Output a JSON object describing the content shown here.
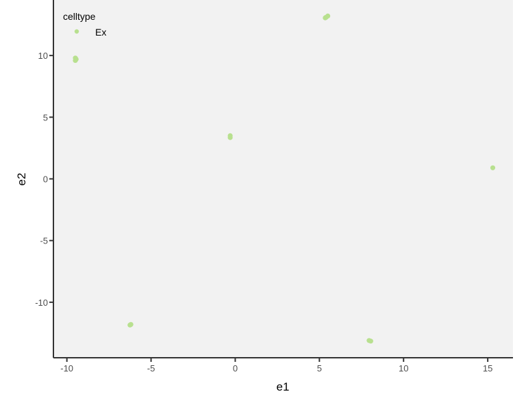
{
  "chart_data": {
    "type": "scatter",
    "xlabel": "e1",
    "ylabel": "e2",
    "xlim": [
      -10.8,
      16.5
    ],
    "ylim": [
      -14.5,
      14.5
    ],
    "x_ticks": [
      -10,
      -5,
      0,
      5,
      10,
      15
    ],
    "x_tick_labels": [
      "-10",
      "-5",
      "0",
      "5",
      "10",
      "15"
    ],
    "y_ticks": [
      -10,
      -5,
      0,
      5,
      10
    ],
    "y_tick_labels": [
      "-10",
      "-5",
      "0",
      "5",
      "10"
    ],
    "grid": false,
    "panel_background": "#f2f2f2",
    "legend": {
      "title": "celltype",
      "placement": "top-left",
      "entries": [
        {
          "label": "Ex",
          "color": "#b8e08f"
        }
      ]
    },
    "series": [
      {
        "name": "Ex",
        "color": "#b8e08f",
        "points": [
          {
            "x": 5.4,
            "y": 13.1
          },
          {
            "x": 5.5,
            "y": 13.2
          },
          {
            "x": 5.35,
            "y": 13.05
          },
          {
            "x": -9.5,
            "y": 9.8
          },
          {
            "x": -9.5,
            "y": 9.6
          },
          {
            "x": -9.45,
            "y": 9.7
          },
          {
            "x": -0.3,
            "y": 3.5
          },
          {
            "x": -0.3,
            "y": 3.35
          },
          {
            "x": 15.3,
            "y": 0.9
          },
          {
            "x": -6.2,
            "y": -11.8
          },
          {
            "x": -6.25,
            "y": -11.85
          },
          {
            "x": 7.95,
            "y": -13.1
          },
          {
            "x": 8.05,
            "y": -13.15
          }
        ]
      }
    ]
  }
}
